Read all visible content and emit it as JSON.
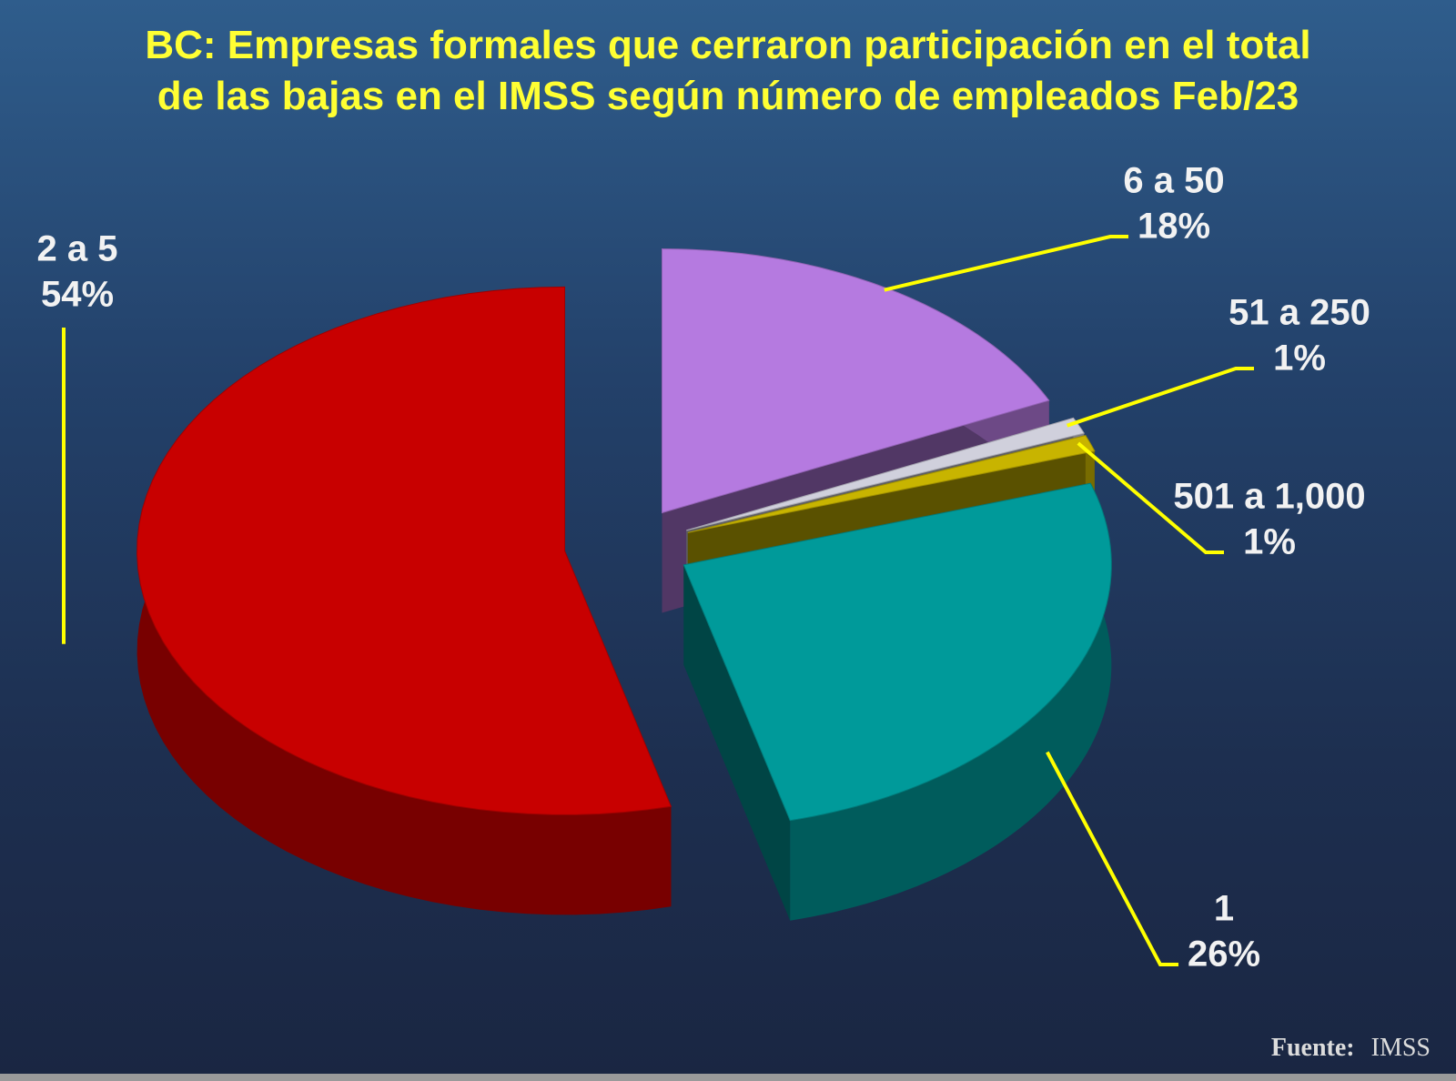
{
  "chart_data": {
    "type": "pie3d",
    "title": "BC: Empresas formales que cerraron participación en el total de las bajas en el IMSS según número de empleados Feb/23",
    "categories": [
      "6 a 50",
      "51 a 250",
      "501 a 1,000",
      "1",
      "2 a 5"
    ],
    "values": [
      18,
      1,
      1,
      26,
      54
    ],
    "value_labels": [
      "18%",
      "1%",
      "1%",
      "26%",
      "54%"
    ],
    "colors": [
      "#b57ae0",
      "#d0d0dc",
      "#c8b400",
      "#009a9a",
      "#c80000"
    ],
    "source_label": "Fuente:",
    "source": "IMSS"
  }
}
